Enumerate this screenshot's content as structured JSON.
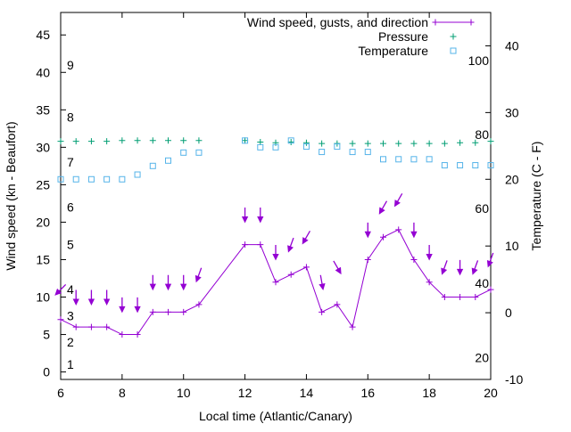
{
  "chart_data": {
    "type": "line",
    "xlabel": "Local time (Atlantic/Canary)",
    "ylabel": "Wind speed (kn - Beaufort)",
    "y2label": "Temperature (C - F)",
    "xlim": [
      6,
      20
    ],
    "ylim": [
      -1,
      48
    ],
    "y2lim": [
      -10,
      45
    ],
    "x_ticks": [
      6,
      8,
      10,
      12,
      14,
      16,
      18,
      20
    ],
    "y_ticks": [
      0,
      5,
      10,
      15,
      20,
      25,
      30,
      35,
      40,
      45
    ],
    "y2_ticks": [
      -10,
      0,
      10,
      20,
      30,
      40
    ],
    "beaufort_labels": [
      {
        "label": "1",
        "y": 1
      },
      {
        "label": "2",
        "y": 4
      },
      {
        "label": "3",
        "y": 7.5
      },
      {
        "label": "4",
        "y": 11
      },
      {
        "label": "5",
        "y": 17
      },
      {
        "label": "6",
        "y": 22
      },
      {
        "label": "7",
        "y": 28
      },
      {
        "label": "8",
        "y": 34
      },
      {
        "label": "9",
        "y": 41
      }
    ],
    "fahrenheit_labels": [
      {
        "label": "20",
        "temp": -6.7
      },
      {
        "label": "40",
        "temp": 4.4
      },
      {
        "label": "60",
        "temp": 15.6
      },
      {
        "label": "80",
        "temp": 26.7
      },
      {
        "label": "100",
        "temp": 37.8
      }
    ],
    "legend": {
      "position": "top-right",
      "entries": [
        "Wind speed, gusts, and direction",
        "Pressure",
        "Temperature"
      ]
    },
    "colors": {
      "wind": "#9400d3",
      "pressure": "#009e73",
      "temperature": "#56b4e9"
    },
    "series": [
      {
        "name": "Wind speed, gusts, and direction",
        "style": "line-plus",
        "points": [
          {
            "x": 6,
            "y": 7
          },
          {
            "x": 6.5,
            "y": 6
          },
          {
            "x": 7,
            "y": 6
          },
          {
            "x": 7.5,
            "y": 6
          },
          {
            "x": 8,
            "y": 5
          },
          {
            "x": 8.5,
            "y": 5
          },
          {
            "x": 9,
            "y": 8
          },
          {
            "x": 9.5,
            "y": 8
          },
          {
            "x": 10,
            "y": 8
          },
          {
            "x": 10.5,
            "y": 9
          },
          {
            "x": 12,
            "y": 17
          },
          {
            "x": 12.5,
            "y": 17
          },
          {
            "x": 13,
            "y": 12
          },
          {
            "x": 13.5,
            "y": 13
          },
          {
            "x": 14,
            "y": 14
          },
          {
            "x": 14.5,
            "y": 8
          },
          {
            "x": 15,
            "y": 9
          },
          {
            "x": 15.5,
            "y": 6
          },
          {
            "x": 16,
            "y": 15
          },
          {
            "x": 16.5,
            "y": 18
          },
          {
            "x": 17,
            "y": 19
          },
          {
            "x": 17.5,
            "y": 15
          },
          {
            "x": 18,
            "y": 12
          },
          {
            "x": 18.5,
            "y": 10
          },
          {
            "x": 19,
            "y": 10
          },
          {
            "x": 19.5,
            "y": 10
          },
          {
            "x": 20,
            "y": 11
          }
        ]
      },
      {
        "name": "Gusts (direction arrows)",
        "style": "arrows",
        "points": [
          {
            "x": 6,
            "y": 11,
            "dir": 225
          },
          {
            "x": 6.5,
            "y": 10,
            "dir": 180
          },
          {
            "x": 7,
            "y": 10,
            "dir": 180
          },
          {
            "x": 7.5,
            "y": 10,
            "dir": 180
          },
          {
            "x": 8,
            "y": 9,
            "dir": 180
          },
          {
            "x": 8.5,
            "y": 9,
            "dir": 180
          },
          {
            "x": 9,
            "y": 12,
            "dir": 180
          },
          {
            "x": 9.5,
            "y": 12,
            "dir": 180
          },
          {
            "x": 10,
            "y": 12,
            "dir": 180
          },
          {
            "x": 10.5,
            "y": 13,
            "dir": 200
          },
          {
            "x": 12,
            "y": 21,
            "dir": 180
          },
          {
            "x": 12.5,
            "y": 21,
            "dir": 180
          },
          {
            "x": 13,
            "y": 16,
            "dir": 180
          },
          {
            "x": 13.5,
            "y": 17,
            "dir": 200
          },
          {
            "x": 14,
            "y": 18,
            "dir": 210
          },
          {
            "x": 14.5,
            "y": 12,
            "dir": 170
          },
          {
            "x": 15,
            "y": 14,
            "dir": 150
          },
          {
            "x": 16,
            "y": 19,
            "dir": 180
          },
          {
            "x": 16.5,
            "y": 22,
            "dir": 210
          },
          {
            "x": 17,
            "y": 23,
            "dir": 210
          },
          {
            "x": 17.5,
            "y": 19,
            "dir": 180
          },
          {
            "x": 18,
            "y": 16,
            "dir": 180
          },
          {
            "x": 18.5,
            "y": 14,
            "dir": 200
          },
          {
            "x": 19,
            "y": 14,
            "dir": 180
          },
          {
            "x": 19.5,
            "y": 14,
            "dir": 200
          },
          {
            "x": 20,
            "y": 15,
            "dir": 200
          }
        ]
      },
      {
        "name": "Pressure",
        "style": "plus",
        "points": [
          {
            "x": 6,
            "y": 30.8
          },
          {
            "x": 6.5,
            "y": 30.8
          },
          {
            "x": 7,
            "y": 30.8
          },
          {
            "x": 7.5,
            "y": 30.8
          },
          {
            "x": 8,
            "y": 30.9
          },
          {
            "x": 8.5,
            "y": 30.9
          },
          {
            "x": 9,
            "y": 30.9
          },
          {
            "x": 9.5,
            "y": 30.9
          },
          {
            "x": 10,
            "y": 30.9
          },
          {
            "x": 10.5,
            "y": 30.9
          },
          {
            "x": 12,
            "y": 30.9
          },
          {
            "x": 12.5,
            "y": 30.7
          },
          {
            "x": 13,
            "y": 30.6
          },
          {
            "x": 13.5,
            "y": 30.7
          },
          {
            "x": 14,
            "y": 30.6
          },
          {
            "x": 14.5,
            "y": 30.5
          },
          {
            "x": 15,
            "y": 30.5
          },
          {
            "x": 15.5,
            "y": 30.5
          },
          {
            "x": 16,
            "y": 30.5
          },
          {
            "x": 16.5,
            "y": 30.5
          },
          {
            "x": 17,
            "y": 30.5
          },
          {
            "x": 17.5,
            "y": 30.5
          },
          {
            "x": 18,
            "y": 30.5
          },
          {
            "x": 18.5,
            "y": 30.5
          },
          {
            "x": 19,
            "y": 30.6
          },
          {
            "x": 19.5,
            "y": 30.6
          },
          {
            "x": 20,
            "y": 30.8
          }
        ]
      },
      {
        "name": "Temperature",
        "style": "square",
        "points": [
          {
            "x": 6,
            "t": 20.0
          },
          {
            "x": 6.5,
            "t": 20.0
          },
          {
            "x": 7,
            "t": 20.0
          },
          {
            "x": 7.5,
            "t": 20.0
          },
          {
            "x": 8,
            "t": 20.0
          },
          {
            "x": 8.5,
            "t": 20.7
          },
          {
            "x": 9,
            "t": 22.0
          },
          {
            "x": 9.5,
            "t": 22.8
          },
          {
            "x": 10,
            "t": 24.0
          },
          {
            "x": 10.5,
            "t": 24.0
          },
          {
            "x": 12,
            "t": 25.8
          },
          {
            "x": 12.5,
            "t": 24.8
          },
          {
            "x": 13,
            "t": 24.8
          },
          {
            "x": 13.5,
            "t": 25.8
          },
          {
            "x": 14,
            "t": 24.9
          },
          {
            "x": 14.5,
            "t": 24.1
          },
          {
            "x": 15,
            "t": 24.9
          },
          {
            "x": 15.5,
            "t": 24.1
          },
          {
            "x": 16,
            "t": 24.1
          },
          {
            "x": 16.5,
            "t": 23.0
          },
          {
            "x": 17,
            "t": 23.0
          },
          {
            "x": 17.5,
            "t": 23.0
          },
          {
            "x": 18,
            "t": 23.0
          },
          {
            "x": 18.5,
            "t": 22.1
          },
          {
            "x": 19,
            "t": 22.1
          },
          {
            "x": 19.5,
            "t": 22.1
          },
          {
            "x": 20,
            "t": 22.1
          }
        ]
      }
    ]
  }
}
